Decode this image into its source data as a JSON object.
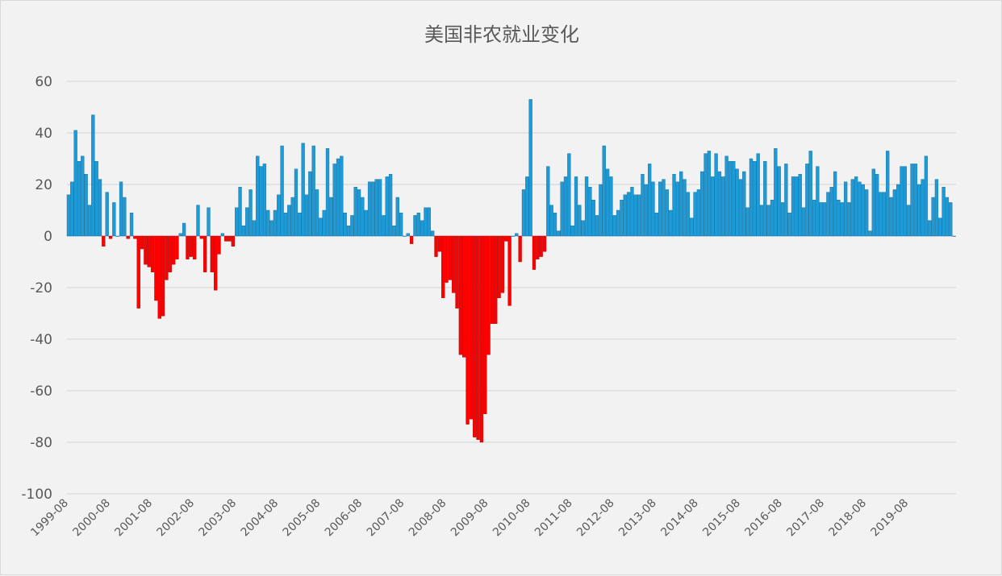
{
  "chart_data": {
    "type": "bar",
    "title": "美国非农就业变化",
    "xlabel": "",
    "ylabel": "",
    "ylim": [
      -100,
      60
    ],
    "yticks": [
      60,
      40,
      20,
      0,
      -20,
      -40,
      -60,
      -80,
      -100
    ],
    "x_tick_labels": [
      "1999-08",
      "2000-08",
      "2001-08",
      "2002-08",
      "2003-08",
      "2004-08",
      "2005-08",
      "2006-08",
      "2007-08",
      "2008-08",
      "2009-08",
      "2010-08",
      "2011-08",
      "2012-08",
      "2013-08",
      "2014-08",
      "2015-08",
      "2016-08",
      "2017-08",
      "2018-08",
      "2019-08"
    ],
    "grid": true,
    "legend": "none",
    "colors": {
      "positive": "#1e9bd7",
      "negative": "#ff0000",
      "background": "#f2f2f2",
      "grid": "#d9d9d9"
    },
    "values": [
      16,
      21,
      41,
      29,
      31,
      24,
      12,
      47,
      29,
      22,
      -4,
      17,
      -1,
      13,
      0,
      21,
      15,
      -1,
      9,
      -1,
      -28,
      -5,
      -11,
      -12,
      -14,
      -25,
      -32,
      -31,
      -17,
      -14,
      -11,
      -9,
      1,
      5,
      -9,
      -8,
      -9,
      12,
      -1,
      -14,
      11,
      -14,
      -21,
      -7,
      1,
      -2,
      -2,
      -4,
      11,
      19,
      4,
      11,
      18,
      6,
      31,
      27,
      28,
      10,
      6,
      10,
      16,
      35,
      9,
      12,
      15,
      26,
      9,
      36,
      16,
      25,
      35,
      18,
      7,
      10,
      34,
      15,
      28,
      30,
      31,
      9,
      4,
      8,
      19,
      18,
      15,
      10,
      21,
      21,
      22,
      22,
      8,
      23,
      24,
      4,
      15,
      9,
      0,
      1,
      -3,
      8,
      9,
      6,
      11,
      11,
      2,
      -8,
      -6,
      -24,
      -18,
      -17,
      -22,
      -28,
      -46,
      -47,
      -73,
      -71,
      -78,
      -79,
      -80,
      -69,
      -46,
      -34,
      -34,
      -24,
      -22,
      -2,
      -27,
      0,
      1,
      -10,
      18,
      23,
      53,
      -13,
      -9,
      -8,
      -6,
      27,
      12,
      9,
      2,
      21,
      23,
      32,
      4,
      23,
      12,
      6,
      23,
      19,
      14,
      8,
      20,
      35,
      26,
      23,
      8,
      10,
      14,
      16,
      17,
      19,
      16,
      16,
      24,
      20,
      28,
      21,
      9,
      21,
      22,
      18,
      10,
      24,
      21,
      25,
      22,
      17,
      7,
      17,
      18,
      25,
      32,
      33,
      23,
      32,
      25,
      23,
      31,
      29,
      29,
      26,
      22,
      25,
      11,
      30,
      29,
      32,
      12,
      29,
      12,
      14,
      34,
      27,
      13,
      28,
      9,
      23,
      23,
      24,
      11,
      28,
      33,
      14,
      27,
      13,
      13,
      17,
      19,
      25,
      14,
      13,
      21,
      13,
      22,
      23,
      21,
      20,
      18,
      2,
      26,
      24,
      17,
      17,
      33,
      15,
      18,
      20,
      27,
      27,
      12,
      28,
      28,
      20,
      22,
      31,
      6,
      15,
      22,
      7,
      19,
      15,
      13,
      0
    ]
  }
}
